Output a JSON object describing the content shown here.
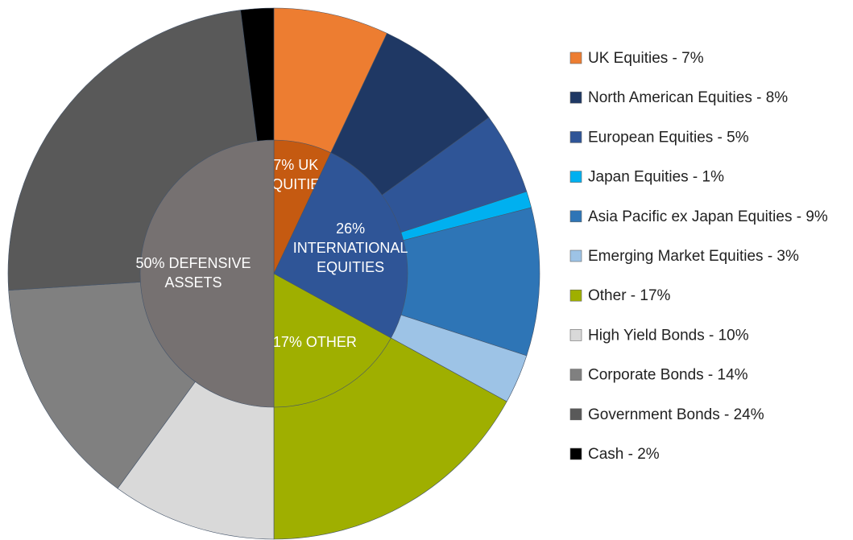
{
  "chart_data": {
    "type": "pie",
    "categories": [
      "UK Equities - 7%",
      "North American Equities - 8%",
      "European Equities - 5%",
      "Japan Equities - 1%",
      "Asia Pacific ex Japan Equities - 9%",
      "Emerging Market Equities - 3%",
      "Other - 17%",
      "High Yield Bonds - 10%",
      "Corporate Bonds - 14%",
      "Government Bonds - 24%",
      "Cash - 2%"
    ],
    "values": [
      7,
      8,
      5,
      1,
      9,
      3,
      17,
      10,
      14,
      24,
      2
    ],
    "colors": [
      "#ed7d31",
      "#1f3864",
      "#2f5597",
      "#00b0f0",
      "#2e75b6",
      "#9dc3e6",
      "#9faf00",
      "#d9d9d9",
      "#808080",
      "#595959",
      "#000000"
    ],
    "inner": {
      "labels": [
        [
          "7% UK",
          "EQUITIES"
        ],
        [
          "26%",
          "INTERNATIONAL",
          "EQUITIES"
        ],
        [
          "17% OTHER"
        ],
        [
          "50% DEFENSIVE",
          "ASSETS"
        ]
      ],
      "values": [
        7,
        26,
        17,
        50
      ],
      "colors": [
        "#c55a11",
        "#2f5597",
        "#9faf00",
        "#767171"
      ]
    },
    "legend": "right"
  }
}
